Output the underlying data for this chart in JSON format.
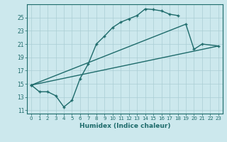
{
  "xlabel": "Humidex (Indice chaleur)",
  "bg_color": "#cce8ed",
  "grid_color": "#aacdd4",
  "line_color": "#1e6b6b",
  "xlim": [
    -0.5,
    23.5
  ],
  "ylim": [
    10.5,
    27.0
  ],
  "xticks": [
    0,
    1,
    2,
    3,
    4,
    5,
    6,
    7,
    8,
    9,
    10,
    11,
    12,
    13,
    14,
    15,
    16,
    17,
    18,
    19,
    20,
    21,
    22,
    23
  ],
  "yticks": [
    11,
    13,
    15,
    17,
    19,
    21,
    23,
    25
  ],
  "line1_x": [
    0,
    1,
    2,
    3,
    4,
    5,
    6,
    7,
    8,
    9,
    10,
    11,
    12,
    13,
    14,
    15,
    16,
    17,
    18
  ],
  "line1_y": [
    14.8,
    13.8,
    13.8,
    13.2,
    11.5,
    12.5,
    15.8,
    18.0,
    21.0,
    22.2,
    23.5,
    24.3,
    24.8,
    25.3,
    26.3,
    26.2,
    26.0,
    25.5,
    25.3
  ],
  "line2_x": [
    0,
    19,
    20,
    21,
    23
  ],
  "line2_y": [
    14.8,
    24.0,
    20.2,
    21.0,
    20.7
  ],
  "line3_x": [
    0,
    23
  ],
  "line3_y": [
    14.8,
    20.7
  ]
}
